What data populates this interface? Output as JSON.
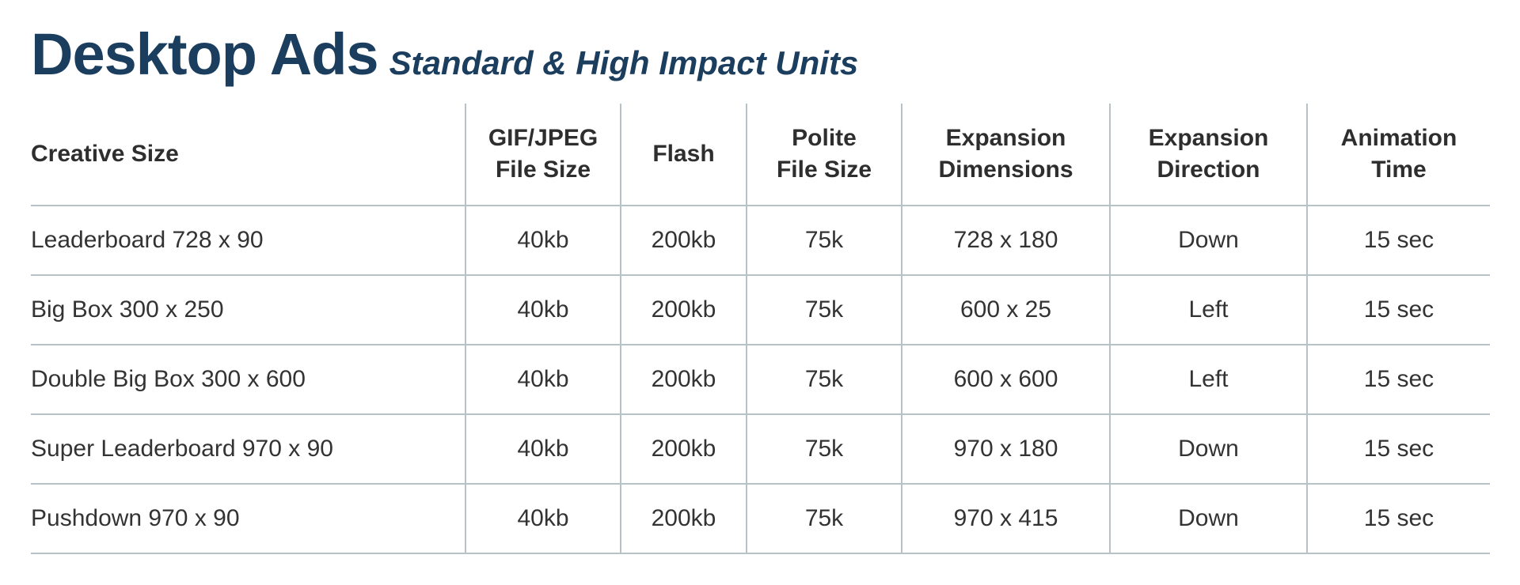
{
  "header": {
    "title": "Desktop Ads",
    "subtitle": "Standard & High Impact Units"
  },
  "table": {
    "columns": [
      [
        "Creative Size"
      ],
      [
        "GIF/JPEG",
        "File Size"
      ],
      [
        "Flash"
      ],
      [
        "Polite",
        "File Size"
      ],
      [
        "Expansion",
        "Dimensions"
      ],
      [
        "Expansion",
        "Direction"
      ],
      [
        "Animation",
        "Time"
      ]
    ],
    "rows": [
      [
        "Leaderboard 728 x 90",
        "40kb",
        "200kb",
        "75k",
        "728 x 180",
        "Down",
        "15 sec"
      ],
      [
        "Big Box 300 x 250",
        "40kb",
        "200kb",
        "75k",
        "600 x 25",
        "Left",
        "15 sec"
      ],
      [
        "Double Big Box 300 x 600",
        "40kb",
        "200kb",
        "75k",
        "600 x 600",
        "Left",
        "15 sec"
      ],
      [
        "Super Leaderboard 970 x 90",
        "40kb",
        "200kb",
        "75k",
        "970 x 180",
        "Down",
        "15 sec"
      ],
      [
        "Pushdown 970 x 90",
        "40kb",
        "200kb",
        "75k",
        "970 x 415",
        "Down",
        "15 sec"
      ]
    ]
  }
}
